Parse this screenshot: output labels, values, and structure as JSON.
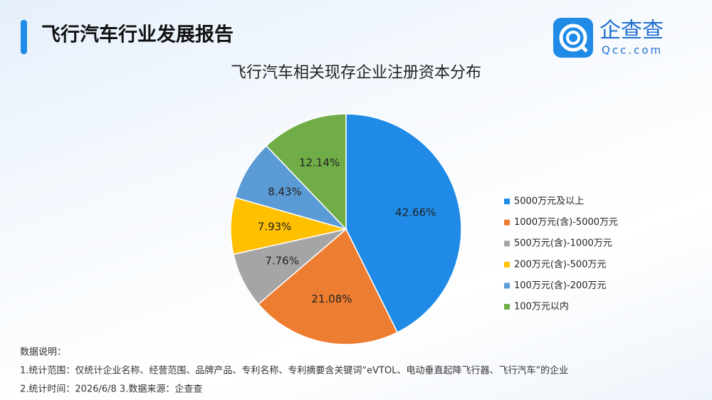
{
  "header": {
    "title": "飞行汽车行业发展报告",
    "logo_text": "企查查",
    "logo_domain": "Qcc.com"
  },
  "chart_data": {
    "type": "pie",
    "title": "飞行汽车相关现存企业注册资本分布",
    "categories": [
      "5000万元及以上",
      "1000万元(含)-5000万元",
      "500万元(含)-1000万元",
      "200万元(含)-500万元",
      "100万元(含)-200万元",
      "100万元以内"
    ],
    "values": [
      42.66,
      21.08,
      7.76,
      7.93,
      8.43,
      12.14
    ],
    "value_labels": [
      "42.66%",
      "21.08%",
      "7.76%",
      "7.93%",
      "8.43%",
      "12.14%"
    ],
    "colors": [
      "#1f8be6",
      "#ed7d31",
      "#a5a5a5",
      "#ffc000",
      "#5b9bd5",
      "#70ad47"
    ],
    "legend": "right"
  },
  "notes": {
    "heading": "数据说明：",
    "lines": [
      "1.统计范围：仅统计企业名称、经营范围、品牌产品、专利名称、专利摘要含关键词“eVTOL、电动垂直起降飞行器、飞行汽车”的企业",
      "2.统计时间：2026/6/8 3.数据来源：企查查"
    ]
  }
}
